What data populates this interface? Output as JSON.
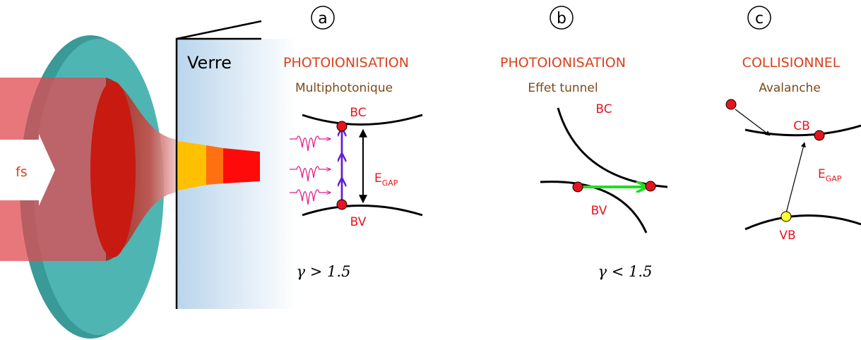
{
  "lens": {
    "beam_label": "fs",
    "glass_label": "Verre"
  },
  "panels": [
    {
      "tag": "a",
      "title": "PHOTOIONISATION",
      "subtitle": "Multiphotonique",
      "upper_band": "BC",
      "lower_band": "BV",
      "gap": {
        "main": "E",
        "sub": "GAP"
      },
      "condition": "γ > 1.5"
    },
    {
      "tag": "b",
      "title": "PHOTOIONISATION",
      "subtitle": "Effet tunnel",
      "upper_band": "BC",
      "lower_band": "BV",
      "condition": "γ < 1.5"
    },
    {
      "tag": "c",
      "title": "COLLISIONNEL",
      "subtitle": "Avalanche",
      "upper_band": "CB",
      "lower_band": "VB",
      "gap": {
        "main": "E",
        "sub": "GAP"
      }
    }
  ]
}
